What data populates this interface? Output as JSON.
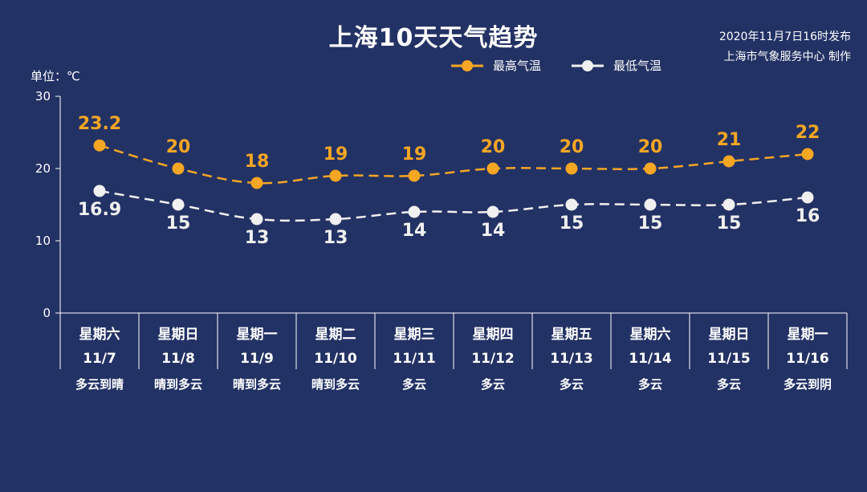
{
  "header": {
    "title": "上海10天天气趋势",
    "publish_time": "2020年11月7日16时发布",
    "publisher": "上海市气象服务中心 制作"
  },
  "colors": {
    "background": "#233265",
    "high": "#f5a623",
    "low": "#f0f0f0",
    "axis": "#ffffff"
  },
  "chart_data": {
    "type": "line",
    "title": "上海10天天气趋势",
    "ylabel": "单位：℃",
    "ylim": [
      0,
      30
    ],
    "yticks": [
      0,
      10,
      20,
      30
    ],
    "grid": false,
    "legend": "top-right",
    "categories": [
      "11/7",
      "11/8",
      "11/9",
      "11/10",
      "11/11",
      "11/12",
      "11/13",
      "11/14",
      "11/15",
      "11/16"
    ],
    "weekdays": [
      "星期六",
      "星期日",
      "星期一",
      "星期二",
      "星期三",
      "星期四",
      "星期五",
      "星期六",
      "星期日",
      "星期一"
    ],
    "weather": [
      "多云到晴",
      "晴到多云",
      "晴到多云",
      "晴到多云",
      "多云",
      "多云",
      "多云",
      "多云",
      "多云",
      "多云到阴"
    ],
    "series": [
      {
        "name": "最高气温",
        "values": [
          23.2,
          20,
          18,
          19,
          19,
          20,
          20,
          20,
          21,
          22
        ],
        "labels": [
          "23.2",
          "20",
          "18",
          "19",
          "19",
          "20",
          "20",
          "20",
          "21",
          "22"
        ]
      },
      {
        "name": "最低气温",
        "values": [
          16.9,
          15,
          13,
          13,
          14,
          14,
          15,
          15,
          15,
          16
        ],
        "labels": [
          "16.9",
          "15",
          "13",
          "13",
          "14",
          "14",
          "15",
          "15",
          "15",
          "16"
        ]
      }
    ]
  }
}
